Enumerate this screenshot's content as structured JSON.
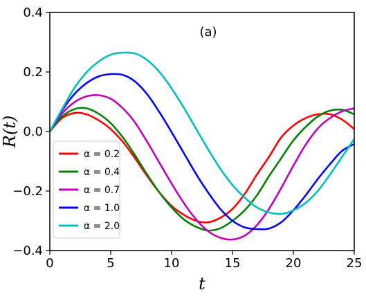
{
  "chart_data": {
    "type": "line",
    "title": "",
    "panel_label": "(a)",
    "xlabel": "t",
    "ylabel": "R(t)",
    "xlim": [
      0,
      25
    ],
    "ylim": [
      -0.4,
      0.4
    ],
    "xticks": [
      0,
      5,
      10,
      15,
      20,
      25
    ],
    "xtick_labels": [
      "0",
      "5",
      "10",
      "15",
      "20",
      "25"
    ],
    "yticks": [
      -0.4,
      -0.2,
      0.0,
      0.2,
      0.4
    ],
    "ytick_labels": [
      "−0.4",
      "−0.2",
      "0.0",
      "0.2",
      "0.4"
    ],
    "grid": false,
    "legend_position": "lower-left",
    "series": [
      {
        "name": "α = 0.2",
        "color": "#ff0000",
        "points": [
          [
            0,
            0.0
          ],
          [
            1,
            0.045
          ],
          [
            2,
            0.062
          ],
          [
            3,
            0.058
          ],
          [
            4,
            0.038
          ],
          [
            5,
            0.008
          ],
          [
            6,
            -0.035
          ],
          [
            7,
            -0.09
          ],
          [
            8,
            -0.15
          ],
          [
            9,
            -0.205
          ],
          [
            10,
            -0.25
          ],
          [
            11,
            -0.28
          ],
          [
            12,
            -0.3
          ],
          [
            13,
            -0.305
          ],
          [
            14,
            -0.29
          ],
          [
            15,
            -0.26
          ],
          [
            16,
            -0.21
          ],
          [
            17,
            -0.145
          ],
          [
            18,
            -0.085
          ],
          [
            19,
            -0.02
          ],
          [
            20,
            0.02
          ],
          [
            21,
            0.045
          ],
          [
            22,
            0.058
          ],
          [
            23,
            0.058
          ],
          [
            24,
            0.04
          ],
          [
            25,
            0.008
          ]
        ]
      },
      {
        "name": "α = 0.4",
        "color": "#008000",
        "points": [
          [
            0,
            0.0
          ],
          [
            1,
            0.05
          ],
          [
            2,
            0.075
          ],
          [
            3,
            0.078
          ],
          [
            4,
            0.06
          ],
          [
            5,
            0.028
          ],
          [
            6,
            -0.02
          ],
          [
            7,
            -0.08
          ],
          [
            8,
            -0.145
          ],
          [
            9,
            -0.205
          ],
          [
            10,
            -0.255
          ],
          [
            11,
            -0.295
          ],
          [
            12,
            -0.32
          ],
          [
            13,
            -0.333
          ],
          [
            14,
            -0.325
          ],
          [
            15,
            -0.3
          ],
          [
            16,
            -0.265
          ],
          [
            17,
            -0.215
          ],
          [
            18,
            -0.15
          ],
          [
            19,
            -0.09
          ],
          [
            20,
            -0.03
          ],
          [
            21,
            0.015
          ],
          [
            22,
            0.05
          ],
          [
            23,
            0.07
          ],
          [
            24,
            0.073
          ],
          [
            25,
            0.058
          ]
        ]
      },
      {
        "name": "α = 0.7",
        "color": "#c000c0",
        "points": [
          [
            0,
            0.0
          ],
          [
            1,
            0.06
          ],
          [
            2,
            0.098
          ],
          [
            3,
            0.118
          ],
          [
            4,
            0.122
          ],
          [
            5,
            0.11
          ],
          [
            6,
            0.078
          ],
          [
            7,
            0.03
          ],
          [
            8,
            -0.035
          ],
          [
            9,
            -0.105
          ],
          [
            10,
            -0.175
          ],
          [
            11,
            -0.24
          ],
          [
            12,
            -0.295
          ],
          [
            13,
            -0.335
          ],
          [
            14,
            -0.357
          ],
          [
            15,
            -0.363
          ],
          [
            16,
            -0.35
          ],
          [
            17,
            -0.315
          ],
          [
            18,
            -0.26
          ],
          [
            19,
            -0.19
          ],
          [
            20,
            -0.115
          ],
          [
            21,
            -0.045
          ],
          [
            22,
            0.01
          ],
          [
            23,
            0.045
          ],
          [
            24,
            0.068
          ],
          [
            25,
            0.078
          ]
        ]
      },
      {
        "name": "α = 1.0",
        "color": "#0000ff",
        "points": [
          [
            0,
            0.0
          ],
          [
            1,
            0.07
          ],
          [
            2,
            0.125
          ],
          [
            3,
            0.162
          ],
          [
            4,
            0.185
          ],
          [
            5,
            0.193
          ],
          [
            6,
            0.19
          ],
          [
            7,
            0.168
          ],
          [
            8,
            0.125
          ],
          [
            9,
            0.065
          ],
          [
            10,
            -0.002
          ],
          [
            11,
            -0.072
          ],
          [
            12,
            -0.142
          ],
          [
            13,
            -0.205
          ],
          [
            14,
            -0.26
          ],
          [
            15,
            -0.3
          ],
          [
            16,
            -0.322
          ],
          [
            17,
            -0.328
          ],
          [
            18,
            -0.326
          ],
          [
            19,
            -0.305
          ],
          [
            20,
            -0.265
          ],
          [
            21,
            -0.215
          ],
          [
            22,
            -0.16
          ],
          [
            23,
            -0.11
          ],
          [
            24,
            -0.065
          ],
          [
            25,
            -0.042
          ]
        ]
      },
      {
        "name": "α = 2.0",
        "color": "#00bfbf",
        "points": [
          [
            0,
            0.0
          ],
          [
            1,
            0.075
          ],
          [
            2,
            0.145
          ],
          [
            3,
            0.198
          ],
          [
            4,
            0.235
          ],
          [
            5,
            0.258
          ],
          [
            6,
            0.265
          ],
          [
            7,
            0.262
          ],
          [
            8,
            0.24
          ],
          [
            9,
            0.2
          ],
          [
            10,
            0.145
          ],
          [
            11,
            0.08
          ],
          [
            12,
            0.01
          ],
          [
            13,
            -0.06
          ],
          [
            14,
            -0.125
          ],
          [
            15,
            -0.18
          ],
          [
            16,
            -0.222
          ],
          [
            17,
            -0.255
          ],
          [
            18,
            -0.272
          ],
          [
            19,
            -0.277
          ],
          [
            20,
            -0.265
          ],
          [
            21,
            -0.24
          ],
          [
            22,
            -0.2
          ],
          [
            23,
            -0.145
          ],
          [
            24,
            -0.085
          ],
          [
            25,
            -0.025
          ]
        ]
      }
    ]
  }
}
